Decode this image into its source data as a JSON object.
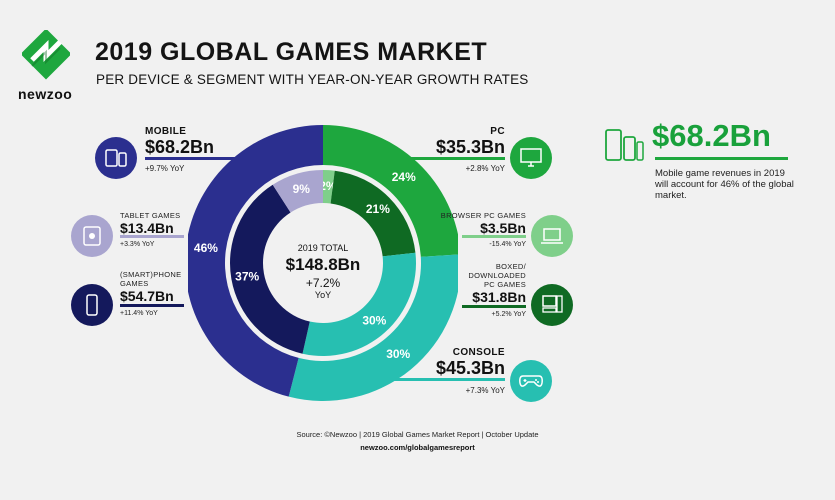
{
  "header": {
    "logo_text": "newzoo",
    "title": "2019 GLOBAL GAMES MARKET",
    "subtitle": "PER DEVICE & SEGMENT WITH YEAR-ON-YEAR GROWTH RATES"
  },
  "left": {
    "mobile": {
      "label": "MOBILE",
      "value": "$68.2Bn",
      "yoy": "+9.7% YoY"
    },
    "tablet": {
      "label": "TABLET GAMES",
      "value": "$13.4Bn",
      "yoy": "+3.3% YoY"
    },
    "phone": {
      "label1": "(SMART)PHONE",
      "label2": "GAMES",
      "value": "$54.7Bn",
      "yoy": "+11.4% YoY"
    }
  },
  "right": {
    "pc": {
      "label": "PC",
      "value": "$35.3Bn",
      "yoy": "+2.8% YoY"
    },
    "browser": {
      "label": "BROWSER PC GAMES",
      "value": "$3.5Bn",
      "yoy": "-15.4% YoY"
    },
    "boxed": {
      "label1": "BOXED/",
      "label2": "DOWNLOADED",
      "label3": "PC GAMES",
      "value": "$31.8Bn",
      "yoy": "+5.2% YoY"
    },
    "console": {
      "label": "CONSOLE",
      "value": "$45.3Bn",
      "yoy": "+7.3% YoY"
    }
  },
  "center": {
    "total_label": "2019 TOTAL",
    "total_value": "$148.8Bn",
    "total_growth": "+7.2%",
    "total_yoy": "YoY"
  },
  "callout": {
    "value": "$68.2Bn",
    "text": "Mobile game revenues in 2019 will account for 46% of the global market."
  },
  "footer": {
    "source": "Source: ©Newzoo | 2019 Global Games Market Report | October Update",
    "url": "newzoo.com/globalgamesreport"
  },
  "colors": {
    "mobile": "#2b2f8f",
    "tablet": "#a9a5cf",
    "phone": "#14195c",
    "pc": "#1ea73e",
    "browser": "#7fcf8a",
    "boxed": "#0f6a23",
    "console": "#27bfb1",
    "console_inner": "#27bfb1"
  },
  "chart_data": {
    "type": "pie",
    "outer": {
      "categories": [
        "Mobile",
        "PC",
        "Console"
      ],
      "values": [
        46,
        24,
        30
      ],
      "labels": [
        "46%",
        "24%",
        "30%"
      ]
    },
    "inner": {
      "categories": [
        "Tablet games",
        "Browser PC games",
        "Boxed/downloaded PC games",
        "Console",
        "(Smart)phone games"
      ],
      "values": [
        9,
        2,
        21,
        30,
        37
      ],
      "labels": [
        "9%",
        "2%",
        "21%",
        "30%",
        "37%"
      ]
    }
  }
}
